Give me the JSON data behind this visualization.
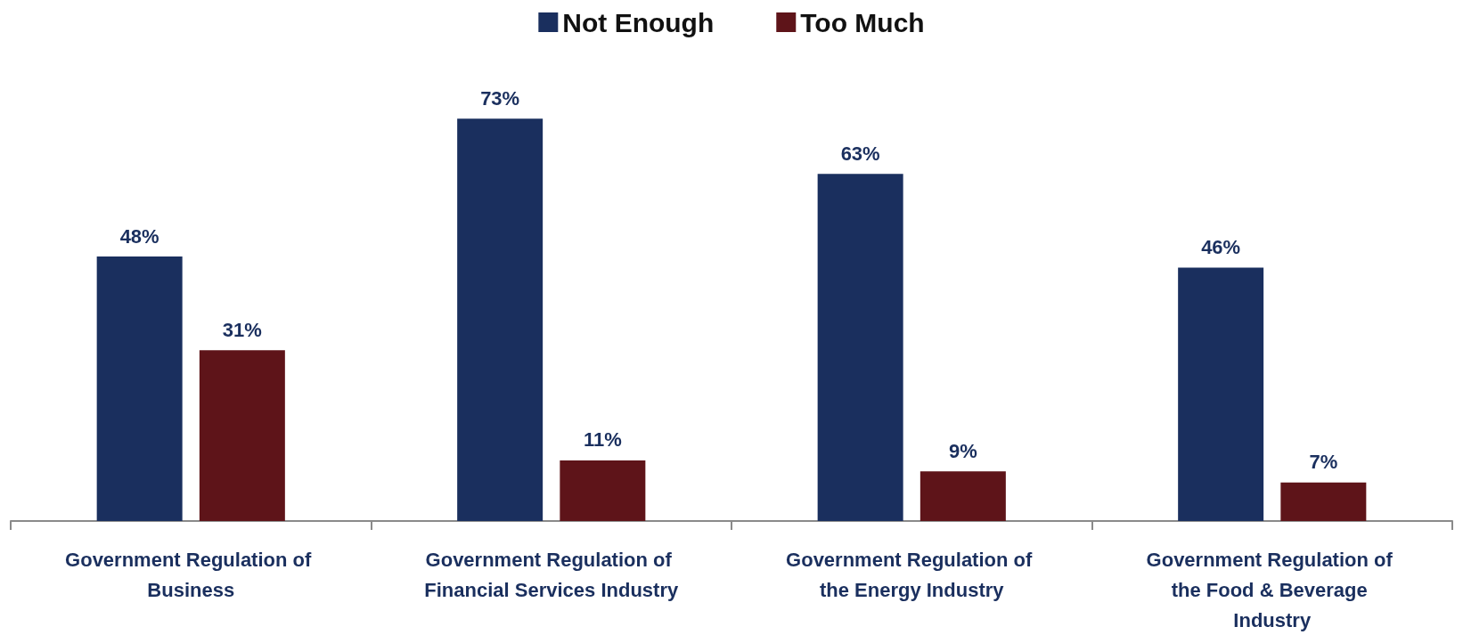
{
  "chart_data": {
    "type": "bar",
    "categories": [
      "Government Regulation of Business",
      "Government Regulation of Financial Services Industry",
      "Government Regulation of the Energy Industry",
      "Government Regulation of the Food & Beverage Industry"
    ],
    "series": [
      {
        "name": "Not Enough",
        "color": "#1a2f5e",
        "values": [
          48,
          73,
          63,
          46
        ],
        "value_labels": [
          "48%",
          "73%",
          "63%",
          "46%"
        ]
      },
      {
        "name": "Too Much",
        "color": "#5e1419",
        "values": [
          31,
          11,
          9,
          7
        ],
        "value_labels": [
          "31%",
          "11%",
          "9%",
          "7%"
        ]
      }
    ],
    "legend": "top"
  }
}
